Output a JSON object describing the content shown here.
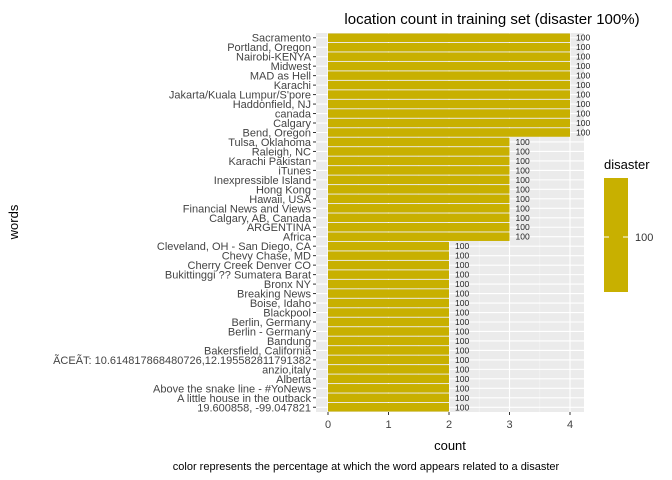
{
  "chart_data": {
    "type": "bar",
    "orientation": "horizontal",
    "title": "location count in training set (disaster 100%)",
    "xlabel": "count",
    "ylabel": "words",
    "caption": "color represents the percentage at which the word appears related to a disaster",
    "xlim": [
      0,
      4.2
    ],
    "x_ticks": [
      "0",
      "1",
      "2",
      "3",
      "4"
    ],
    "grid": true,
    "bar_color": "#C8B000",
    "panel_background": "#EBEBEB",
    "legend": {
      "title": "disaster",
      "position": "right",
      "value_label": "100",
      "color": "#C8B000"
    },
    "categories": [
      "Sacramento",
      "Portland, Oregon",
      "Nairobi-KENYA",
      "Midwest",
      "MAD as Hell",
      "Karachi",
      "Jakarta/Kuala Lumpur/S'pore",
      "Haddonfield, NJ",
      "canada",
      "Calgary",
      "Bend, Oregon",
      "Tulsa, Oklahoma",
      "Raleigh, NC",
      "Karachi Pakistan",
      "iTunes",
      "Inexpressible Island",
      "Hong Kong",
      "Hawaii, USA",
      "Financial News and Views",
      "Calgary, AB, Canada",
      "ARGENTINA",
      "Africa",
      "Cleveland, OH - San Diego, CA",
      "Chevy Chase, MD",
      "Cherry Creek Denver CO",
      "Bukittinggi  ?? Sumatera Barat",
      "Bronx NY",
      "Breaking News",
      "Boise, Idaho",
      "Blackpool",
      "Berlin, Germany",
      "Berlin - Germany",
      "Bandung",
      "Bakersfield, California",
      "ÃCEÃT: 10.614817868480726,12.195582811791382",
      "anzio,italy",
      "Alberta",
      "Above the snake line - #YoNews",
      "A little house in the outback",
      "19.600858, -99.047821"
    ],
    "values": [
      4,
      4,
      4,
      4,
      4,
      4,
      4,
      4,
      4,
      4,
      4,
      3,
      3,
      3,
      3,
      3,
      3,
      3,
      3,
      3,
      3,
      3,
      2,
      2,
      2,
      2,
      2,
      2,
      2,
      2,
      2,
      2,
      2,
      2,
      2,
      2,
      2,
      2,
      2,
      2
    ],
    "data_labels": [
      "100",
      "100",
      "100",
      "100",
      "100",
      "100",
      "100",
      "100",
      "100",
      "100",
      "100",
      "100",
      "100",
      "100",
      "100",
      "100",
      "100",
      "100",
      "100",
      "100",
      "100",
      "100",
      "100",
      "100",
      "100",
      "100",
      "100",
      "100",
      "100",
      "100",
      "100",
      "100",
      "100",
      "100",
      "100",
      "100",
      "100",
      "100",
      "100",
      "100"
    ]
  }
}
